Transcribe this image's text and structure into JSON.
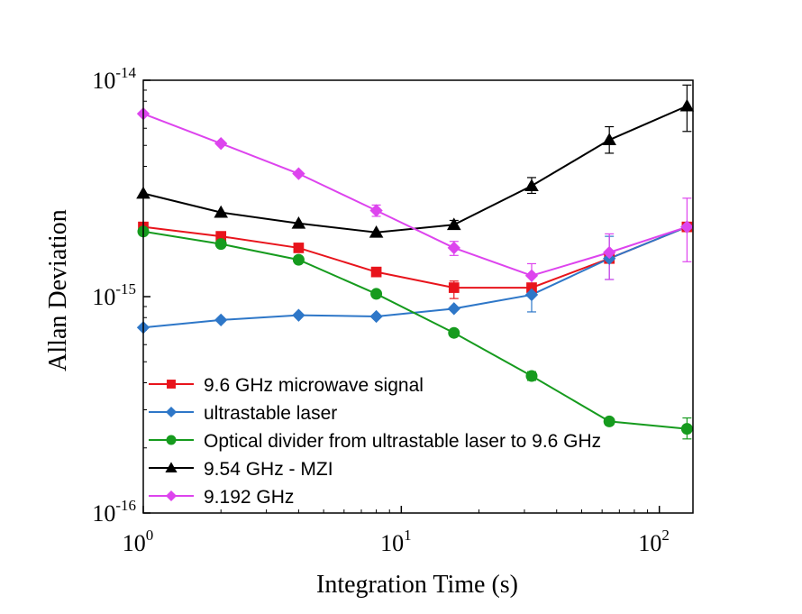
{
  "chart_data": {
    "type": "line",
    "xlabel": "Integration Time (s)",
    "ylabel": "Allan Deviation",
    "xscale": "log",
    "yscale": "log",
    "xlim": [
      1,
      135
    ],
    "ylim": [
      1e-16,
      1e-14
    ],
    "legend_position": "bottom-left",
    "x_ticks": [
      {
        "value": 1,
        "base": "10",
        "exp": "0"
      },
      {
        "value": 10,
        "base": "10",
        "exp": "1"
      },
      {
        "value": 100,
        "base": "10",
        "exp": "2"
      }
    ],
    "y_ticks": [
      {
        "value": 1e-16,
        "base": "10",
        "exp": "-16"
      },
      {
        "value": 1e-15,
        "base": "10",
        "exp": "-15"
      },
      {
        "value": 1e-14,
        "base": "10",
        "exp": "-14"
      }
    ],
    "x": [
      1,
      2,
      4,
      8,
      16,
      32,
      64,
      128
    ],
    "series": [
      {
        "name": "9.6 GHz microwave signal",
        "color": "#e8141c",
        "marker": "square",
        "values": [
          2.1e-15,
          1.9e-15,
          1.68e-15,
          1.3e-15,
          1.1e-15,
          1.1e-15,
          1.5e-15,
          2.1e-15
        ],
        "err_low": [
          0,
          0,
          0,
          0,
          9.8e-16,
          0,
          0,
          0
        ],
        "err_high": [
          0,
          0,
          0,
          0,
          1.18e-15,
          0,
          0,
          0
        ]
      },
      {
        "name": "ultrastable laser",
        "color": "#2e77c8",
        "marker": "diamond",
        "values": [
          7.2e-16,
          7.8e-16,
          8.2e-16,
          8.1e-16,
          8.8e-16,
          1.02e-15,
          1.5e-15,
          2.1e-15
        ],
        "err_low": [
          0,
          0,
          0,
          0,
          0,
          8.5e-16,
          1.2e-15,
          0
        ],
        "err_high": [
          0,
          0,
          0,
          0,
          0,
          1.12e-15,
          1.9e-15,
          0
        ]
      },
      {
        "name": "Optical divider from ultrastable laser to 9.6 GHz",
        "color": "#169b1e",
        "marker": "circle",
        "values": [
          2e-15,
          1.75e-15,
          1.48e-15,
          1.03e-15,
          6.8e-16,
          4.3e-16,
          2.65e-16,
          2.45e-16
        ],
        "err_low": [
          0,
          0,
          0,
          0,
          0,
          4.1e-16,
          2.55e-16,
          2.2e-16
        ],
        "err_high": [
          0,
          0,
          0,
          0,
          0,
          4.5e-16,
          2.75e-16,
          2.75e-16
        ]
      },
      {
        "name": "9.54 GHz - MZI",
        "color": "#000000",
        "marker": "triangle",
        "values": [
          3e-15,
          2.45e-15,
          2.18e-15,
          1.98e-15,
          2.15e-15,
          3.25e-15,
          5.3e-15,
          7.6e-15
        ],
        "err_low": [
          0,
          0,
          0,
          0,
          2.05e-15,
          3e-15,
          4.6e-15,
          5.8e-15
        ],
        "err_high": [
          0,
          0,
          0,
          0,
          2.25e-15,
          3.55e-15,
          6.1e-15,
          9.5e-15
        ]
      },
      {
        "name": "9.192 GHz",
        "color": "#dd44ee",
        "marker": "diamond",
        "values": [
          7e-15,
          5.1e-15,
          3.7e-15,
          2.5e-15,
          1.68e-15,
          1.25e-15,
          1.6e-15,
          2.1e-15
        ],
        "err_low": [
          0,
          0,
          0,
          2.35e-15,
          1.55e-15,
          1.1e-15,
          1.2e-15,
          1.45e-15
        ],
        "err_high": [
          0,
          0,
          0,
          2.65e-15,
          1.8e-15,
          1.42e-15,
          1.95e-15,
          2.85e-15
        ]
      }
    ]
  }
}
